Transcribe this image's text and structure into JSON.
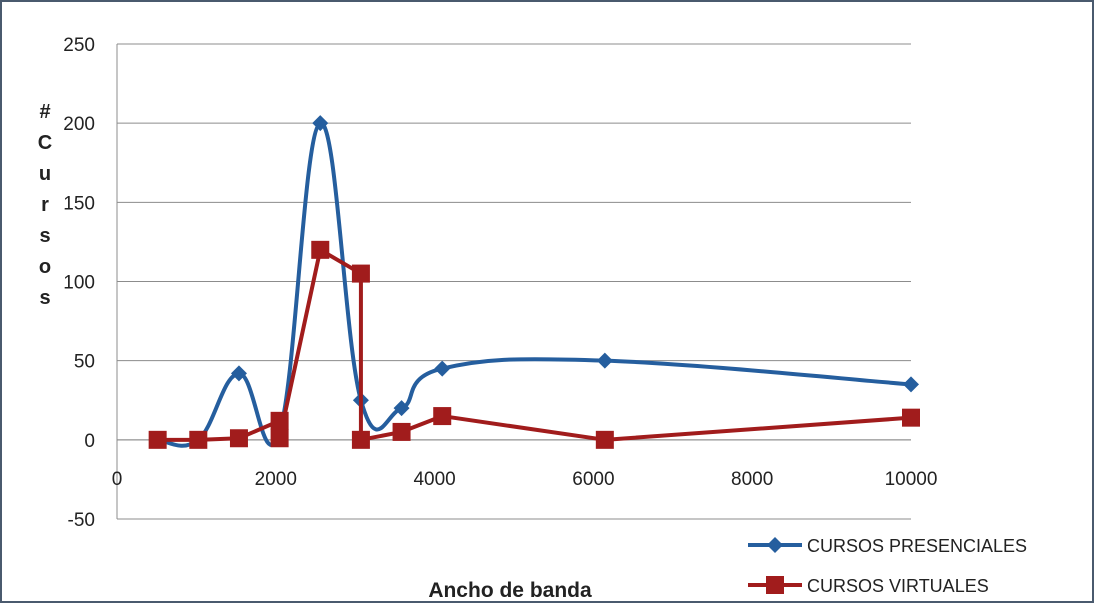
{
  "chart_data": {
    "type": "line",
    "title": "",
    "xlabel": "Ancho de banda",
    "ylabel": "#Cursos",
    "xlim": [
      0,
      10000
    ],
    "ylim": [
      -50,
      250
    ],
    "x_ticks": [
      0,
      2000,
      4000,
      6000,
      8000,
      10000
    ],
    "y_ticks": [
      -50,
      0,
      50,
      100,
      150,
      200,
      250
    ],
    "grid": "horizontal",
    "legend_position": "bottom-right",
    "series": [
      {
        "name": "CURSOS PRESENCIALES",
        "color": "#255e9e",
        "marker": "diamond",
        "smooth": true,
        "x": [
          512,
          1024,
          1536,
          2048,
          2560,
          3072,
          3584,
          4096,
          6144,
          10000
        ],
        "y": [
          0,
          0,
          42,
          5,
          200,
          25,
          20,
          45,
          50,
          35
        ]
      },
      {
        "name": "CURSOS VIRTUALES",
        "color": "#a11c1c",
        "marker": "square",
        "smooth": false,
        "x": [
          512,
          1024,
          1536,
          2048,
          2048,
          2560,
          3072,
          3072,
          3584,
          4096,
          6144,
          10000
        ],
        "y": [
          0,
          0,
          1,
          12,
          1,
          120,
          105,
          0,
          5,
          15,
          0,
          14
        ]
      }
    ]
  }
}
